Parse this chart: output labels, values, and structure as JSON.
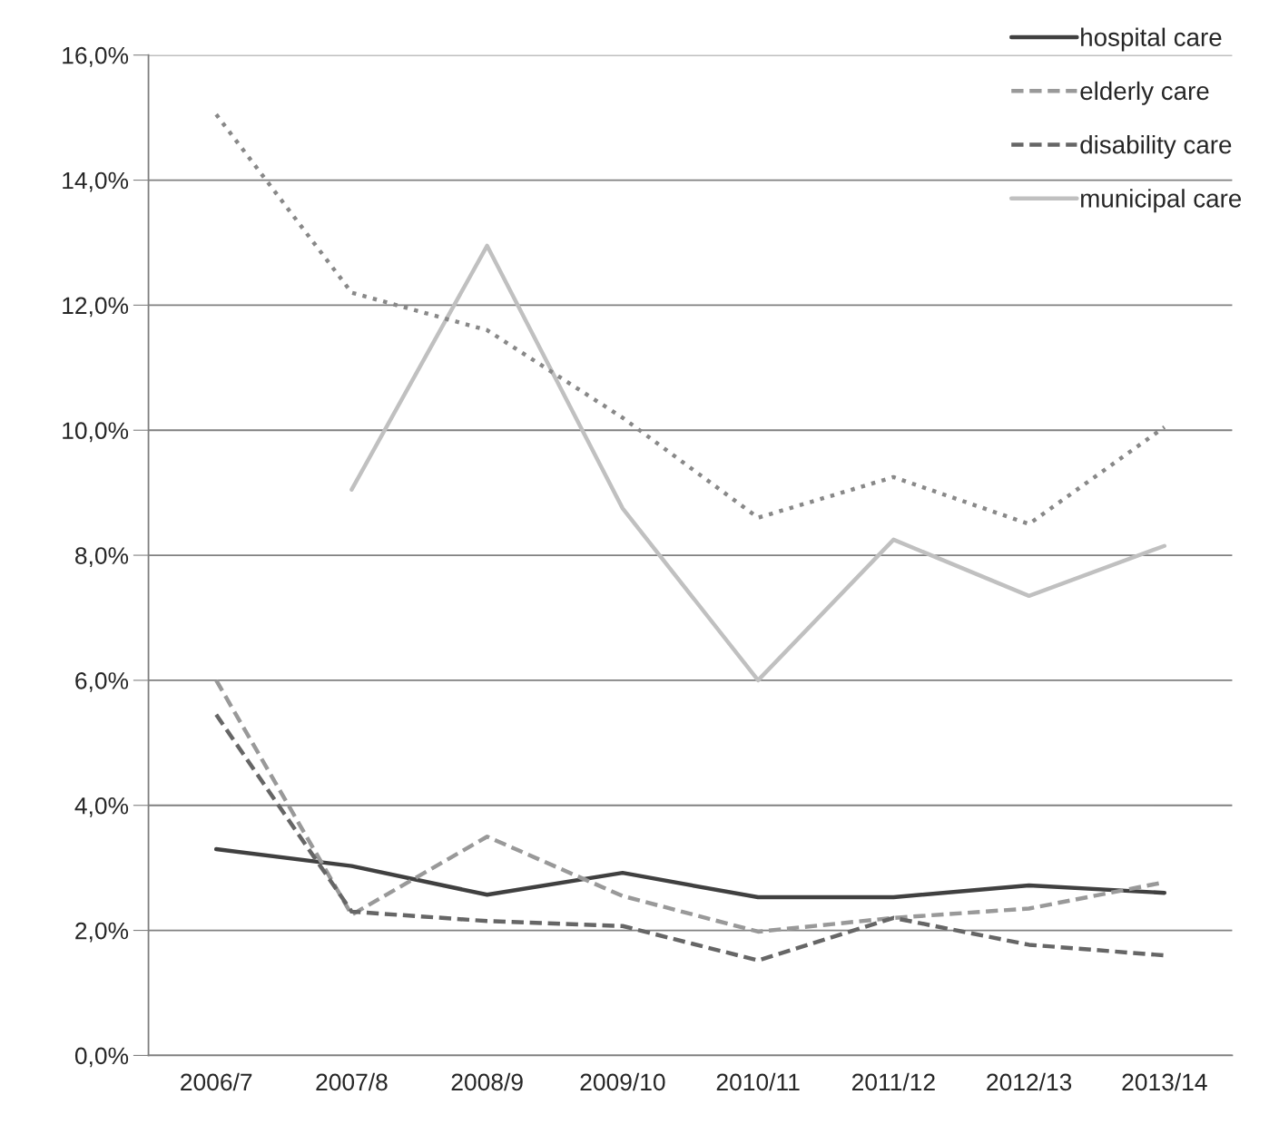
{
  "chart_data": {
    "type": "line",
    "categories": [
      "2006/7",
      "2007/8",
      "2008/9",
      "2009/10",
      "2010/11",
      "2011/12",
      "2012/13",
      "2013/14"
    ],
    "series": [
      {
        "name": "hospital care",
        "color": "#404040",
        "line_style": "solid",
        "values": [
          3.3,
          3.03,
          2.57,
          2.92,
          2.53,
          2.53,
          2.72,
          2.6
        ]
      },
      {
        "name": "elderly care",
        "color": "#999999",
        "line_style": "dashed",
        "values": [
          6.0,
          2.25,
          3.5,
          2.55,
          1.98,
          2.2,
          2.35,
          2.77
        ]
      },
      {
        "name": "disability care",
        "color": "#666666",
        "line_style": "dashed",
        "values": [
          5.45,
          2.3,
          2.15,
          2.07,
          1.52,
          2.2,
          1.77,
          1.6
        ]
      },
      {
        "name": "municipal care",
        "color": "#c0c0c0",
        "line_style": "solid",
        "values": [
          null,
          9.05,
          12.95,
          8.75,
          6.0,
          8.25,
          7.35,
          8.15
        ]
      },
      {
        "color": "#888888",
        "line_style": "dotted",
        "values": [
          15.05,
          12.2,
          11.6,
          10.2,
          8.6,
          9.25,
          8.5,
          10.05
        ]
      }
    ],
    "ylim": [
      0,
      16
    ],
    "yticks": [
      {
        "value": 0,
        "label": "0,0%"
      },
      {
        "value": 2,
        "label": "2,0%"
      },
      {
        "value": 4,
        "label": "4,0%"
      },
      {
        "value": 6,
        "label": "6,0%"
      },
      {
        "value": 8,
        "label": "8,0%"
      },
      {
        "value": 10,
        "label": "10,0%"
      },
      {
        "value": 12,
        "label": "12,0%"
      },
      {
        "value": 14,
        "label": "14,0%"
      },
      {
        "value": 16,
        "label": "16,0%"
      }
    ],
    "grid": "y",
    "legend": "top right",
    "marker": "none"
  }
}
